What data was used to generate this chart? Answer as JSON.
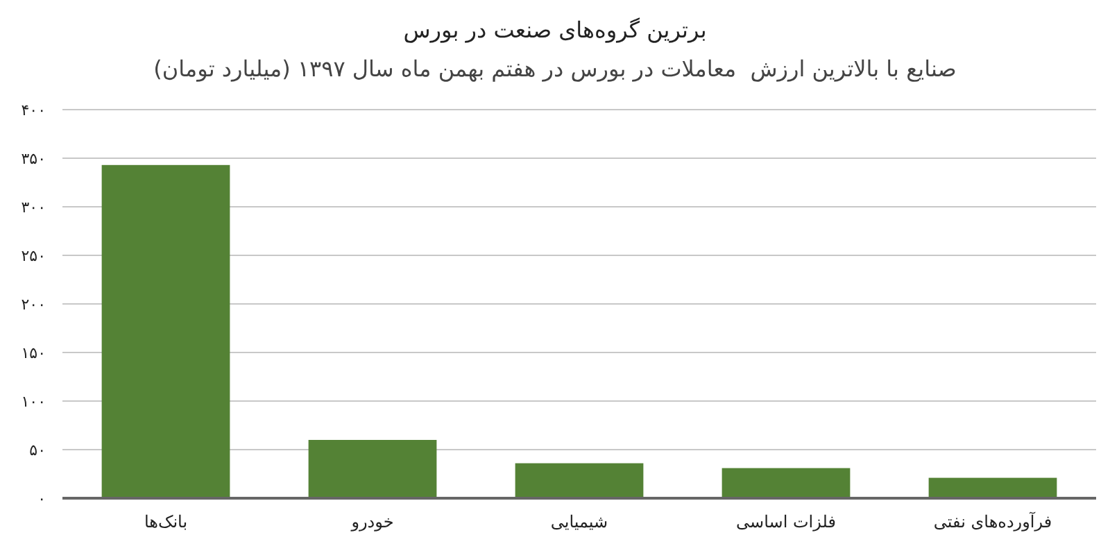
{
  "chart_data": {
    "type": "bar",
    "title": "برترین گروه‌های صنعت در بورس",
    "subtitle": "صنایع با بالاترین ارزش  معاملات در بورس در هفتم بهمن ماه سال ۱۳۹۷ (میلیارد تومان)",
    "categories": [
      "بانک‌ها",
      "خودرو",
      "شیمیایی",
      "فلزات اساسی",
      "فرآورده‌های نفتی"
    ],
    "values": [
      343,
      60,
      36,
      31,
      21
    ],
    "color": "#548235",
    "ylim": [
      0,
      400
    ],
    "yticks": [
      {
        "value": 0,
        "label": "۰"
      },
      {
        "value": 50,
        "label": "۵۰"
      },
      {
        "value": 100,
        "label": "۱۰۰"
      },
      {
        "value": 150,
        "label": "۱۵۰"
      },
      {
        "value": 200,
        "label": "۲۰۰"
      },
      {
        "value": 250,
        "label": "۲۵۰"
      },
      {
        "value": 300,
        "label": "۳۰۰"
      },
      {
        "value": 350,
        "label": "۳۵۰"
      },
      {
        "value": 400,
        "label": "۴۰۰"
      }
    ],
    "grid": "y"
  }
}
